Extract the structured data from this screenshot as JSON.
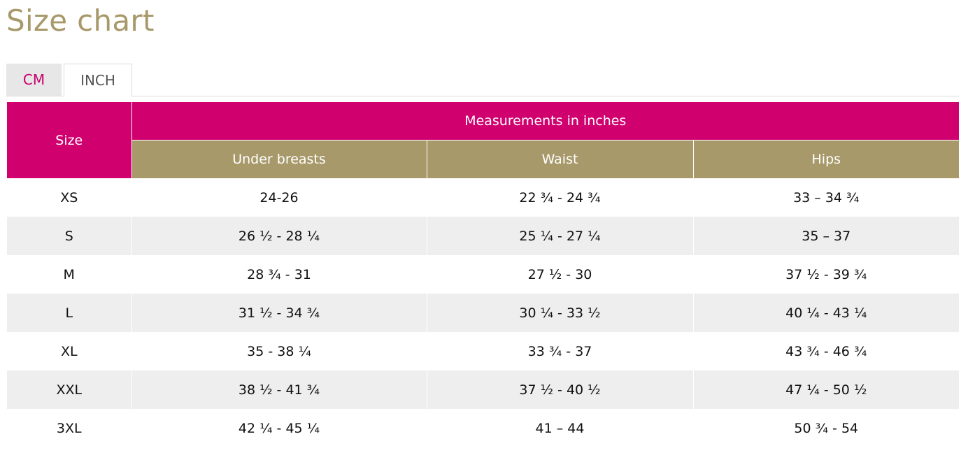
{
  "page": {
    "title": "Size chart"
  },
  "tabs": [
    {
      "label": "CM",
      "active": false
    },
    {
      "label": "INCH",
      "active": true
    }
  ],
  "table": {
    "size_header": "Size",
    "group_header": "Measurements in inches",
    "columns": [
      "Under breasts",
      "Waist",
      "Hips"
    ],
    "rows": [
      {
        "size": "XS",
        "under_breasts": "24-26",
        "waist": "22 ¾ - 24 ¾",
        "hips": "33 – 34 ¾"
      },
      {
        "size": "S",
        "under_breasts": "26 ½ - 28 ¼",
        "waist": "25 ¼ - 27 ¼",
        "hips": "35 – 37"
      },
      {
        "size": "M",
        "under_breasts": "28 ¾ - 31",
        "waist": "27 ½ - 30",
        "hips": "37 ½ - 39 ¾"
      },
      {
        "size": "L",
        "under_breasts": "31 ½ - 34 ¾",
        "waist": "30 ¼ - 33 ½",
        "hips": "40 ¼ - 43 ¼"
      },
      {
        "size": "XL",
        "under_breasts": "35 - 38 ¼",
        "waist": "33 ¾ - 37",
        "hips": "43 ¾ - 46 ¾"
      },
      {
        "size": "XXL",
        "under_breasts": "38 ½ - 41 ¾",
        "waist": "37 ½ - 40 ½",
        "hips": "47 ¼ - 50 ½"
      },
      {
        "size": "3XL",
        "under_breasts": "42 ¼ - 45 ¼",
        "waist": "41 – 44",
        "hips": "50 ¾ - 54"
      }
    ]
  },
  "colors": {
    "title": "#a8996a",
    "header_primary": "#d0006f",
    "header_secondary": "#a8996a",
    "row_alt": "#eeeeee",
    "tab_active_text": "#c9006e"
  }
}
